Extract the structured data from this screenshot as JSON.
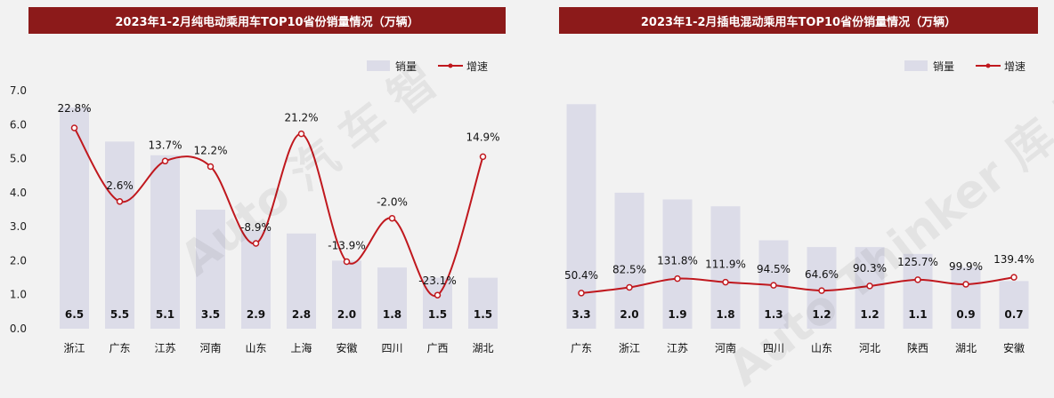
{
  "colors": {
    "bar": "#dcdce8",
    "line": "#c0181e",
    "title_bg": "#8c1a1a",
    "background": "#f2f2f2"
  },
  "watermark": {
    "left": "Auto 汽 车 智",
    "right": "Auto Thinker 库 平 台",
    "icon": "auto-thinker-logo"
  },
  "chart_data": [
    {
      "type": "bar",
      "title": "2023年1-2月纯电动乘用车TOP10省份销量情况（万辆）",
      "categories": [
        "浙江",
        "广东",
        "江苏",
        "河南",
        "山东",
        "上海",
        "安徽",
        "四川",
        "广西",
        "湖北"
      ],
      "series": [
        {
          "name": "销量",
          "type": "bar",
          "values": [
            6.5,
            5.5,
            5.1,
            3.5,
            2.9,
            2.8,
            2.0,
            1.8,
            1.5,
            1.5
          ],
          "labels": [
            "6.5",
            "5.5",
            "5.1",
            "3.5",
            "2.9",
            "2.8",
            "2.0",
            "1.8",
            "1.5",
            "1.5"
          ]
        },
        {
          "name": "增速",
          "type": "line",
          "values": [
            22.8,
            2.6,
            13.7,
            12.2,
            -8.9,
            21.2,
            -13.9,
            -2.0,
            -23.1,
            14.9
          ],
          "labels": [
            "22.8%",
            "2.6%",
            "13.7%",
            "12.2%",
            "-8.9%",
            "21.2%",
            "-13.9%",
            "-2.0%",
            "-23.1%",
            "14.9%"
          ]
        }
      ],
      "y_ticks": [
        "0.0",
        "1.0",
        "2.0",
        "3.0",
        "4.0",
        "5.0",
        "6.0",
        "7.0"
      ],
      "ylim": [
        0,
        7
      ],
      "legend": "top-right",
      "grid": false
    },
    {
      "type": "bar",
      "title": "2023年1-2月插电混动乘用车TOP10省份销量情况（万辆）",
      "categories": [
        "广东",
        "浙江",
        "江苏",
        "河南",
        "四川",
        "山东",
        "河北",
        "陕西",
        "湖北",
        "安徽"
      ],
      "series": [
        {
          "name": "销量",
          "type": "bar",
          "values": [
            3.3,
            2.0,
            1.9,
            1.8,
            1.3,
            1.2,
            1.2,
            1.1,
            0.9,
            0.7
          ],
          "labels": [
            "3.3",
            "2.0",
            "1.9",
            "1.8",
            "1.3",
            "1.2",
            "1.2",
            "1.1",
            "0.9",
            "0.7"
          ]
        },
        {
          "name": "增速",
          "type": "line",
          "values": [
            50.4,
            82.5,
            131.8,
            111.9,
            94.5,
            64.6,
            90.3,
            125.7,
            99.9,
            139.4
          ],
          "labels": [
            "50.4%",
            "82.5%",
            "131.8%",
            "111.9%",
            "94.5%",
            "64.6%",
            "90.3%",
            "125.7%",
            "99.9%",
            "139.4%"
          ]
        }
      ],
      "legend": "top-right",
      "grid": false
    }
  ]
}
